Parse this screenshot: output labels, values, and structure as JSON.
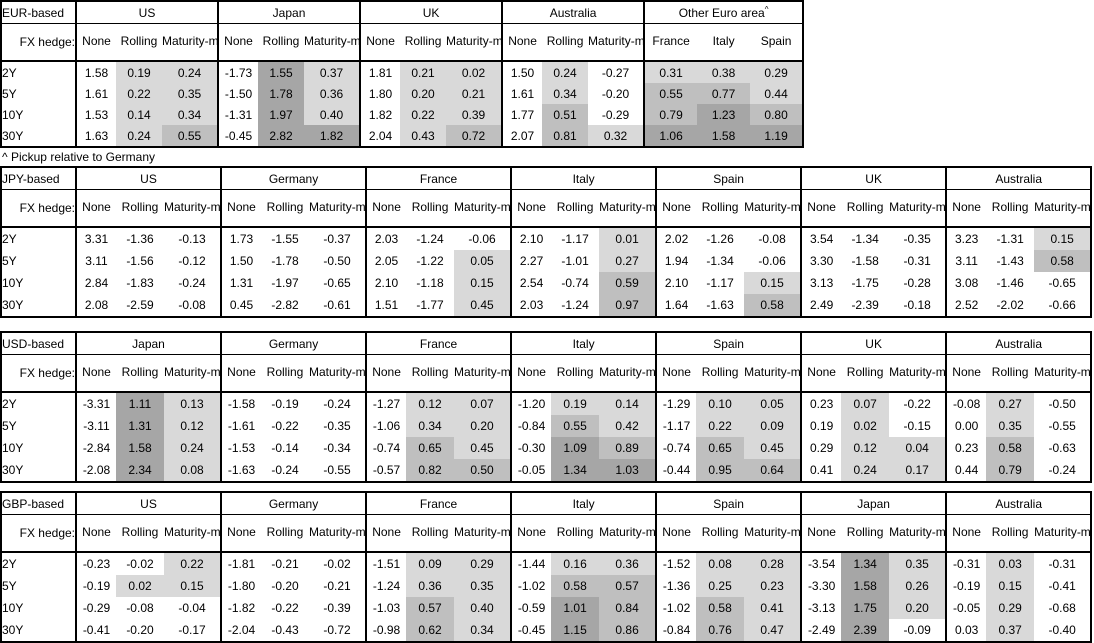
{
  "footnote": "^ Pickup relative to Germany",
  "shared": {
    "fx_hedge_label": "FX hedge:",
    "tenors": [
      "2Y",
      "5Y",
      "10Y",
      "30Y"
    ],
    "hedge_cols": [
      "None",
      "Rolling",
      "Maturity-matched"
    ]
  },
  "colors": {
    "shade_none": "#ffffff",
    "shade_light": "#d9d9d9",
    "shade_medium": "#bfbfbf",
    "shade_dark": "#a6a6a6",
    "border": "#000000"
  },
  "shade_rules": {
    "low_max": 0.5,
    "mid_max": 1.0
  },
  "tables": [
    {
      "base": "EUR-based",
      "groups": [
        {
          "name": "US",
          "subcols": [
            "None",
            "Rolling",
            "Maturity-matched"
          ],
          "shade_all": false,
          "rows": [
            [
              "1.58",
              "0.19",
              "0.24"
            ],
            [
              "1.61",
              "0.22",
              "0.35"
            ],
            [
              "1.53",
              "0.14",
              "0.34"
            ],
            [
              "1.63",
              "0.24",
              "0.55"
            ]
          ]
        },
        {
          "name": "Japan",
          "subcols": [
            "None",
            "Rolling",
            "Maturity-matched"
          ],
          "shade_all": false,
          "rows": [
            [
              "-1.73",
              "1.55",
              "0.37"
            ],
            [
              "-1.50",
              "1.78",
              "0.36"
            ],
            [
              "-1.31",
              "1.97",
              "0.40"
            ],
            [
              "-0.45",
              "2.82",
              "1.82"
            ]
          ]
        },
        {
          "name": "UK",
          "subcols": [
            "None",
            "Rolling",
            "Maturity-matched"
          ],
          "shade_all": false,
          "rows": [
            [
              "1.81",
              "0.21",
              "0.02"
            ],
            [
              "1.80",
              "0.20",
              "0.21"
            ],
            [
              "1.82",
              "0.22",
              "0.39"
            ],
            [
              "2.04",
              "0.43",
              "0.72"
            ]
          ]
        },
        {
          "name": "Australia",
          "subcols": [
            "None",
            "Rolling",
            "Maturity-matched"
          ],
          "shade_all": false,
          "rows": [
            [
              "1.50",
              "0.24",
              "-0.27"
            ],
            [
              "1.61",
              "0.34",
              "-0.20"
            ],
            [
              "1.77",
              "0.51",
              "-0.29"
            ],
            [
              "2.07",
              "0.81",
              "0.32"
            ]
          ]
        },
        {
          "name": "Other Euro area",
          "sup": "^",
          "subcols": [
            "France",
            "Italy",
            "Spain"
          ],
          "shade_all": true,
          "rows": [
            [
              "0.31",
              "0.38",
              "0.29"
            ],
            [
              "0.55",
              "0.77",
              "0.44"
            ],
            [
              "0.79",
              "1.23",
              "0.80"
            ],
            [
              "1.06",
              "1.58",
              "1.19"
            ]
          ]
        }
      ]
    },
    {
      "base": "JPY-based",
      "groups": [
        {
          "name": "US",
          "subcols": [
            "None",
            "Rolling",
            "Maturity-matched"
          ],
          "shade_all": false,
          "rows": [
            [
              "3.31",
              "-1.36",
              "-0.13"
            ],
            [
              "3.11",
              "-1.56",
              "-0.12"
            ],
            [
              "2.84",
              "-1.83",
              "-0.24"
            ],
            [
              "2.08",
              "-2.59",
              "-0.08"
            ]
          ]
        },
        {
          "name": "Germany",
          "subcols": [
            "None",
            "Rolling",
            "Maturity-matched"
          ],
          "shade_all": false,
          "rows": [
            [
              "1.73",
              "-1.55",
              "-0.37"
            ],
            [
              "1.50",
              "-1.78",
              "-0.50"
            ],
            [
              "1.31",
              "-1.97",
              "-0.65"
            ],
            [
              "0.45",
              "-2.82",
              "-0.61"
            ]
          ]
        },
        {
          "name": "France",
          "subcols": [
            "None",
            "Rolling",
            "Maturity-matched"
          ],
          "shade_all": false,
          "rows": [
            [
              "2.03",
              "-1.24",
              "-0.06"
            ],
            [
              "2.05",
              "-1.22",
              "0.05"
            ],
            [
              "2.10",
              "-1.18",
              "0.15"
            ],
            [
              "1.51",
              "-1.77",
              "0.45"
            ]
          ]
        },
        {
          "name": "Italy",
          "subcols": [
            "None",
            "Rolling",
            "Maturity-matched"
          ],
          "shade_all": false,
          "rows": [
            [
              "2.10",
              "-1.17",
              "0.01"
            ],
            [
              "2.27",
              "-1.01",
              "0.27"
            ],
            [
              "2.54",
              "-0.74",
              "0.59"
            ],
            [
              "2.03",
              "-1.24",
              "0.97"
            ]
          ]
        },
        {
          "name": "Spain",
          "subcols": [
            "None",
            "Rolling",
            "Maturity-matched"
          ],
          "shade_all": false,
          "rows": [
            [
              "2.02",
              "-1.26",
              "-0.08"
            ],
            [
              "1.94",
              "-1.34",
              "-0.06"
            ],
            [
              "2.10",
              "-1.17",
              "0.15"
            ],
            [
              "1.64",
              "-1.63",
              "0.58"
            ]
          ]
        },
        {
          "name": "UK",
          "subcols": [
            "None",
            "Rolling",
            "Maturity-matched"
          ],
          "shade_all": false,
          "rows": [
            [
              "3.54",
              "-1.34",
              "-0.35"
            ],
            [
              "3.30",
              "-1.58",
              "-0.31"
            ],
            [
              "3.13",
              "-1.75",
              "-0.28"
            ],
            [
              "2.49",
              "-2.39",
              "-0.18"
            ]
          ]
        },
        {
          "name": "Australia",
          "subcols": [
            "None",
            "Rolling",
            "Maturity-matched"
          ],
          "shade_all": false,
          "rows": [
            [
              "3.23",
              "-1.31",
              "0.15"
            ],
            [
              "3.11",
              "-1.43",
              "0.58"
            ],
            [
              "3.08",
              "-1.46",
              "-0.65"
            ],
            [
              "2.52",
              "-2.02",
              "-0.66"
            ]
          ]
        }
      ]
    },
    {
      "base": "USD-based",
      "groups": [
        {
          "name": "Japan",
          "subcols": [
            "None",
            "Rolling",
            "Maturity-matched"
          ],
          "shade_all": false,
          "rows": [
            [
              "-3.31",
              "1.11",
              "0.13"
            ],
            [
              "-3.11",
              "1.31",
              "0.12"
            ],
            [
              "-2.84",
              "1.58",
              "0.24"
            ],
            [
              "-2.08",
              "2.34",
              "0.08"
            ]
          ]
        },
        {
          "name": "Germany",
          "subcols": [
            "None",
            "Rolling",
            "Maturity-matched"
          ],
          "shade_all": false,
          "rows": [
            [
              "-1.58",
              "-0.19",
              "-0.24"
            ],
            [
              "-1.61",
              "-0.22",
              "-0.35"
            ],
            [
              "-1.53",
              "-0.14",
              "-0.34"
            ],
            [
              "-1.63",
              "-0.24",
              "-0.55"
            ]
          ]
        },
        {
          "name": "France",
          "subcols": [
            "None",
            "Rolling",
            "Maturity-matched"
          ],
          "shade_all": false,
          "rows": [
            [
              "-1.27",
              "0.12",
              "0.07"
            ],
            [
              "-1.06",
              "0.34",
              "0.20"
            ],
            [
              "-0.74",
              "0.65",
              "0.45"
            ],
            [
              "-0.57",
              "0.82",
              "0.50"
            ]
          ]
        },
        {
          "name": "Italy",
          "subcols": [
            "None",
            "Rolling",
            "Maturity-matched"
          ],
          "shade_all": false,
          "rows": [
            [
              "-1.20",
              "0.19",
              "0.14"
            ],
            [
              "-0.84",
              "0.55",
              "0.42"
            ],
            [
              "-0.30",
              "1.09",
              "0.89"
            ],
            [
              "-0.05",
              "1.34",
              "1.03"
            ]
          ]
        },
        {
          "name": "Spain",
          "subcols": [
            "None",
            "Rolling",
            "Maturity-matched"
          ],
          "shade_all": false,
          "rows": [
            [
              "-1.29",
              "0.10",
              "0.05"
            ],
            [
              "-1.17",
              "0.22",
              "0.09"
            ],
            [
              "-0.74",
              "0.65",
              "0.45"
            ],
            [
              "-0.44",
              "0.95",
              "0.64"
            ]
          ]
        },
        {
          "name": "UK",
          "subcols": [
            "None",
            "Rolling",
            "Maturity-matched"
          ],
          "shade_all": false,
          "rows": [
            [
              "0.23",
              "0.07",
              "-0.22"
            ],
            [
              "0.19",
              "0.02",
              "-0.15"
            ],
            [
              "0.29",
              "0.12",
              "0.04"
            ],
            [
              "0.41",
              "0.24",
              "0.17"
            ]
          ]
        },
        {
          "name": "Australia",
          "subcols": [
            "None",
            "Rolling",
            "Maturity-matched"
          ],
          "shade_all": false,
          "rows": [
            [
              "-0.08",
              "0.27",
              "-0.50"
            ],
            [
              "0.00",
              "0.35",
              "-0.55"
            ],
            [
              "0.23",
              "0.58",
              "-0.63"
            ],
            [
              "0.44",
              "0.79",
              "-0.24"
            ]
          ]
        }
      ]
    },
    {
      "base": "GBP-based",
      "groups": [
        {
          "name": "US",
          "subcols": [
            "None",
            "Rolling",
            "Maturity-matched"
          ],
          "shade_all": false,
          "rows": [
            [
              "-0.23",
              "-0.02",
              "0.22"
            ],
            [
              "-0.19",
              "0.02",
              "0.15"
            ],
            [
              "-0.29",
              "-0.08",
              "-0.04"
            ],
            [
              "-0.41",
              "-0.20",
              "-0.17"
            ]
          ]
        },
        {
          "name": "Germany",
          "subcols": [
            "None",
            "Rolling",
            "Maturity-matched"
          ],
          "shade_all": false,
          "rows": [
            [
              "-1.81",
              "-0.21",
              "-0.02"
            ],
            [
              "-1.80",
              "-0.20",
              "-0.21"
            ],
            [
              "-1.82",
              "-0.22",
              "-0.39"
            ],
            [
              "-2.04",
              "-0.43",
              "-0.72"
            ]
          ]
        },
        {
          "name": "France",
          "subcols": [
            "None",
            "Rolling",
            "Maturity-matched"
          ],
          "shade_all": false,
          "rows": [
            [
              "-1.51",
              "0.09",
              "0.29"
            ],
            [
              "-1.24",
              "0.36",
              "0.35"
            ],
            [
              "-1.03",
              "0.57",
              "0.40"
            ],
            [
              "-0.98",
              "0.62",
              "0.34"
            ]
          ]
        },
        {
          "name": "Italy",
          "subcols": [
            "None",
            "Rolling",
            "Maturity-matched"
          ],
          "shade_all": false,
          "rows": [
            [
              "-1.44",
              "0.16",
              "0.36"
            ],
            [
              "-1.02",
              "0.58",
              "0.57"
            ],
            [
              "-0.59",
              "1.01",
              "0.84"
            ],
            [
              "-0.45",
              "1.15",
              "0.86"
            ]
          ]
        },
        {
          "name": "Spain",
          "subcols": [
            "None",
            "Rolling",
            "Maturity-matched"
          ],
          "shade_all": false,
          "rows": [
            [
              "-1.52",
              "0.08",
              "0.28"
            ],
            [
              "-1.36",
              "0.25",
              "0.23"
            ],
            [
              "-1.02",
              "0.58",
              "0.41"
            ],
            [
              "-0.84",
              "0.76",
              "0.47"
            ]
          ]
        },
        {
          "name": "Japan",
          "subcols": [
            "None",
            "Rolling",
            "Maturity-matched"
          ],
          "shade_all": false,
          "rows": [
            [
              "-3.54",
              "1.34",
              "0.35"
            ],
            [
              "-3.30",
              "1.58",
              "0.26"
            ],
            [
              "-3.13",
              "1.75",
              "0.20"
            ],
            [
              "-2.49",
              "2.39",
              "-0.09"
            ]
          ]
        },
        {
          "name": "Australia",
          "subcols": [
            "None",
            "Rolling",
            "Maturity-matched"
          ],
          "shade_all": false,
          "rows": [
            [
              "-0.31",
              "0.03",
              "-0.31"
            ],
            [
              "-0.19",
              "0.15",
              "-0.41"
            ],
            [
              "-0.05",
              "0.29",
              "-0.68"
            ],
            [
              "0.03",
              "0.37",
              "-0.40"
            ]
          ]
        }
      ]
    }
  ]
}
